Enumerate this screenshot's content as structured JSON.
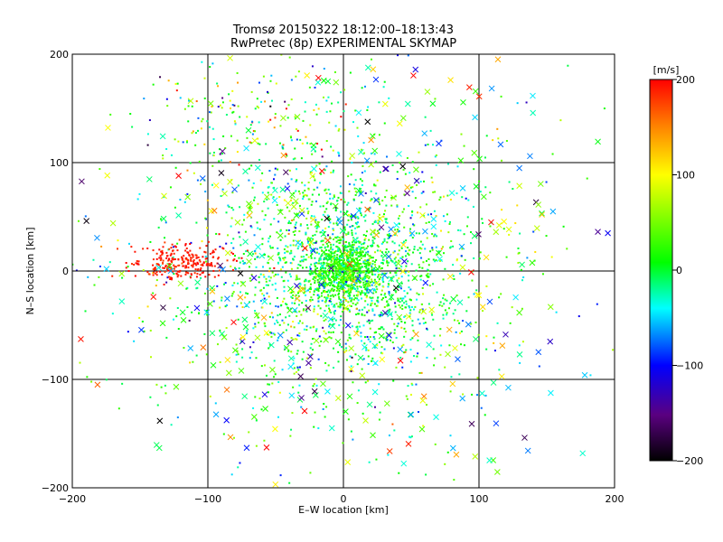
{
  "chart_data": {
    "type": "scatter",
    "title": "Tromsø 20150322 18:12:00–18:13:43",
    "subtitle": "RwPretec (8p) EXPERIMENTAL SKYMAP",
    "xlabel": "E–W location [km]",
    "ylabel": "N–S location [km]",
    "xlim": [
      -200,
      200
    ],
    "ylim": [
      -200,
      200
    ],
    "xticks": [
      -200,
      -100,
      0,
      100,
      200
    ],
    "yticks": [
      -200,
      -100,
      0,
      100,
      200
    ],
    "x_tick_labels": [
      "−200",
      "−100",
      "0",
      "100",
      "200"
    ],
    "y_tick_labels": [
      "−200",
      "−100",
      "0",
      "100",
      "200"
    ],
    "grid": true,
    "gridlines": [
      -100,
      0,
      100
    ],
    "colorbar": {
      "label": "[m/s]",
      "range": [
        -200,
        200
      ],
      "ticks": [
        200,
        100,
        0,
        -100,
        -200
      ],
      "tick_labels": [
        "200",
        "100",
        "0",
        "−100",
        "−200"
      ],
      "colormap": [
        "#000000",
        "#5a0080",
        "#0000ff",
        "#00ffff",
        "#00ff00",
        "#ffff00",
        "#ff8000",
        "#ff0000"
      ]
    },
    "series": [
      {
        "marker": "dot",
        "clusters": [
          {
            "center_x": 0,
            "center_y": 0,
            "spread_x": 12,
            "spread_y": 12,
            "count": 700,
            "velocity_mean": 25,
            "velocity_sd": 15
          },
          {
            "center_x": 0,
            "center_y": 0,
            "spread_x": 38,
            "spread_y": 42,
            "count": 1200,
            "velocity_mean": 5,
            "velocity_sd": 35
          },
          {
            "center_x": -10,
            "center_y": 0,
            "spread_x": 80,
            "spread_y": 90,
            "count": 900,
            "velocity_mean": 0,
            "velocity_sd": 60
          },
          {
            "center_x": -120,
            "center_y": 8,
            "spread_x": 18,
            "spread_y": 8,
            "count": 260,
            "velocity_mean": 190,
            "velocity_sd": 8
          },
          {
            "center_x": -60,
            "center_y": 140,
            "spread_x": 45,
            "spread_y": 25,
            "count": 150,
            "velocity_mean": 40,
            "velocity_sd": 90
          }
        ]
      },
      {
        "marker": "cross",
        "clusters": [
          {
            "center_x": 0,
            "center_y": 0,
            "spread_x": 90,
            "spread_y": 100,
            "count": 420,
            "velocity_mean": 0,
            "velocity_sd": 90
          }
        ]
      }
    ]
  }
}
